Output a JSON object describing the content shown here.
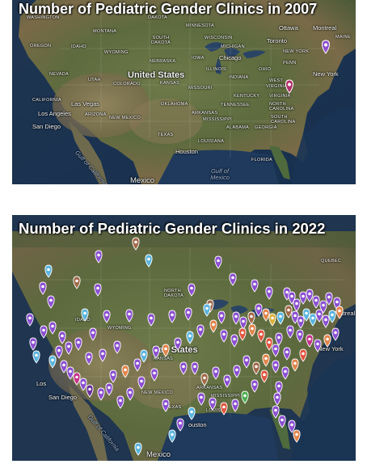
{
  "maps": [
    {
      "title": "Number of Pediatric Gender Clinics in 2007",
      "labels": {
        "washington": "WASHINGTON",
        "montana": "MONTANA",
        "dakota": "DAKOTA",
        "minnesota": "MINNESOTA",
        "ottawa": "Ottawa",
        "montreal": "Montreal",
        "maine": "MAINE",
        "south_dakota": "SOUTH DAKOTA",
        "wisconsin": "WISCONSIN",
        "toronto": "Toronto",
        "oregon": "OREGON",
        "idaho": "IDAHO",
        "wyoming": "WYOMING",
        "michigan": "MICHIGAN",
        "new_york_state": "NEW YORK",
        "iowa": "IOWA",
        "chicago": "Chicago",
        "nebraska": "NEBRASKA",
        "penn": "PENN",
        "nevada": "NEVADA",
        "illinois": "ILLINOIS",
        "ohio": "OHIO",
        "new_york": "New York",
        "united_states": "United States",
        "utah": "UTAH",
        "colorado": "COLORADO",
        "kansas": "KANSAS",
        "missouri": "MISSOURI",
        "indiana": "INDIANA",
        "west": "WEST",
        "virginia_w": "VIRGINIA",
        "california": "CALIFORNIA",
        "las_vegas": "Las Vegas",
        "kentucky": "KENTUCKY",
        "virginia": "VIRGINIA",
        "oklahoma": "OKLAHOMA",
        "tennessee": "TENNESSEE",
        "north_carolina": "NORTH CAROLINA",
        "los_angeles": "Los Angeles",
        "arizona": "ARIZONA",
        "new_mexico": "NEW MEXICO",
        "arkansas": "ARKANSAS",
        "south_carolina": "SOUTH CAROLINA",
        "san_diego": "San Diego",
        "mississippi": "MISSISSIPPI",
        "alabama": "ALABAMA",
        "georgia": "GEORGIA",
        "texas": "TEXAS",
        "louisiana": "LOUISIANA",
        "gulf_california": "Gulf of California",
        "houston": "Houston",
        "florida": "FLORIDA",
        "gulf_mexico": "Gulf of Mexico",
        "mexico": "Mexico"
      },
      "pins": [
        {
          "color": "#8f4fcf"
        },
        {
          "color": "#b0306a"
        }
      ]
    },
    {
      "title": "Number of Pediatric Gender Clinics in 2022",
      "labels": {
        "quebec": "QUEBEC",
        "north_dakota": "NORTH DAKOTA",
        "montreal": "Montreal",
        "wyoming": "WYOMING",
        "united_states_partial": "ited States",
        "new_york": "New York",
        "san_diego": "San Diego",
        "arkansas": "ARKANSAS",
        "mississippi": "MISSISSIPPI",
        "houston": "ouston",
        "gulf_california": "Gulf of California",
        "mexico": "Mexico",
        "louisiana": "LOUISIA",
        "texas": "TEXAS",
        "new_mexico": "NEW MEXICO",
        "kansas": "KANSAS",
        "idaho": "IDAHO",
        "los_angeles": "Los"
      },
      "pin_colors": {
        "purple": "#8b4fd0",
        "light_blue": "#5ab4de",
        "brown": "#a06848",
        "orange": "#e2844a",
        "red": "#e0553f",
        "magenta": "#c4308a",
        "dark_purple": "#6a2f9c",
        "yellow": "#dcb13a",
        "green": "#4caf50"
      }
    }
  ]
}
